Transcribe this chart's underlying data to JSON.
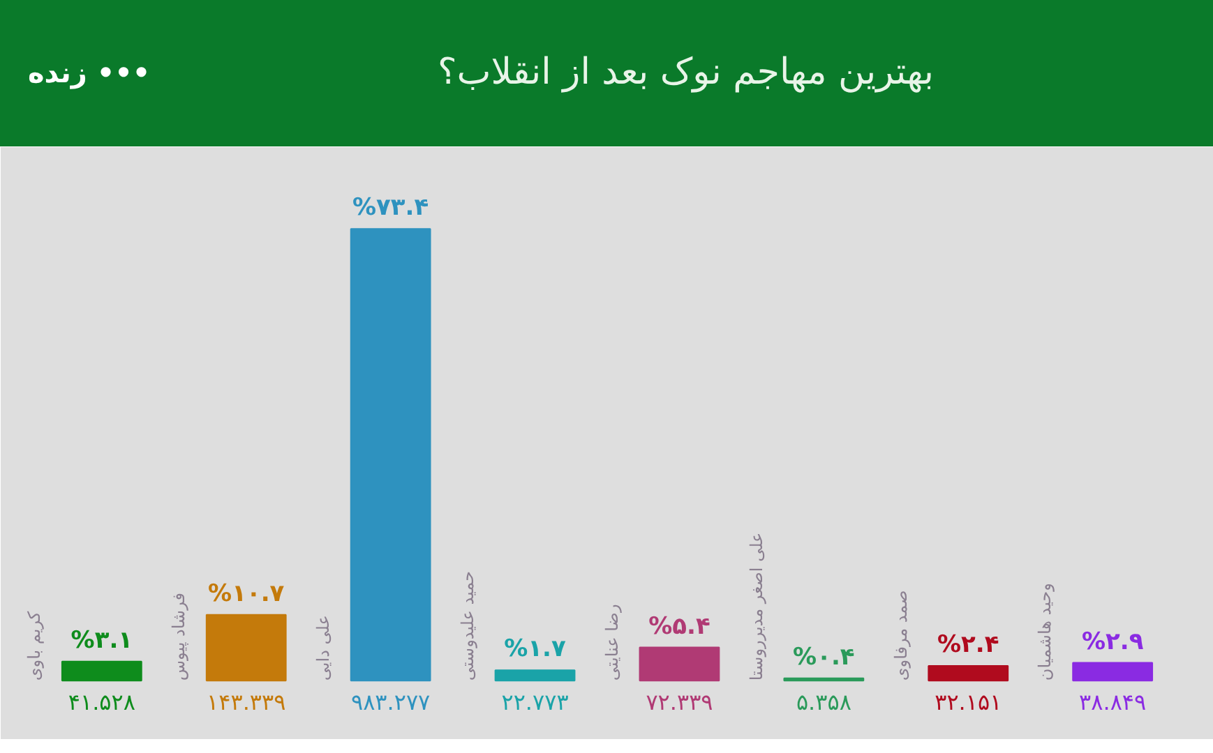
{
  "chart_data": {
    "type": "bar",
    "title": "بهترین مهاجم نوک بعد از انقلاب؟",
    "annotations": [
      "زنده •••",
      "۴۱.۵۲۸",
      "۱۴۳.۳۳۹",
      "۹۸۳.۲۷۷",
      "۲۲.۷۷۳",
      "۷۲.۳۳۹",
      "۵.۳۵۸",
      "۳۲.۱۵۱",
      "۳۸.۸۴۹"
    ],
    "categories": [
      "کریم باوی",
      "فرشاد پیوس",
      "علی دایی",
      "حمید علیدوستی",
      "رضا عنایتی",
      "علی اصغر مدیرروستا",
      "صمد مرفاوی",
      "وحید هاشمیان"
    ],
    "values": [
      3.1,
      10.7,
      73.4,
      1.7,
      5.4,
      0.4,
      2.4,
      2.9
    ],
    "colors": [
      "#0e8c1c",
      "#c47a0b",
      "#2e92bf",
      "#1aa3a8",
      "#b03a74",
      "#2a9a5a",
      "#b00b1e",
      "#8a2be2"
    ],
    "value_labels": [
      "%۳.۱",
      "%۱۰.۷",
      "%۷۳.۴",
      "%۱.۷",
      "%۵.۴",
      "%۰.۴",
      "%۲.۴",
      "%۲.۹"
    ],
    "grid": false
  }
}
